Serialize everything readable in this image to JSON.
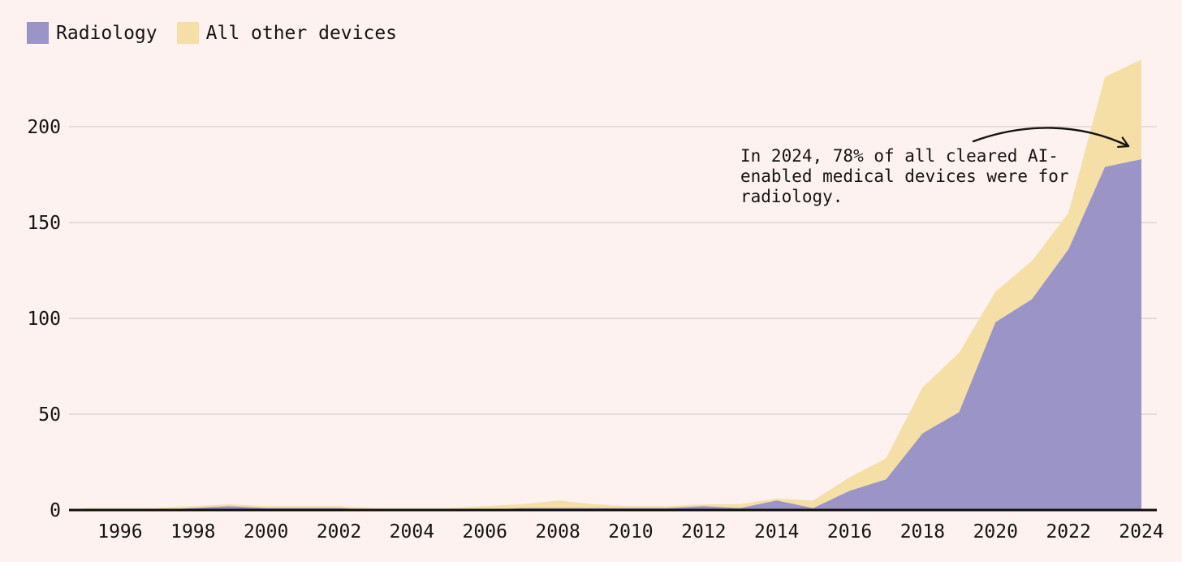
{
  "page": {
    "background_color": "#fdf2ef",
    "text_color": "#141414",
    "gridline_color": "#ddd5d2",
    "axis_color": "#0f0f0f"
  },
  "legend": {
    "items": [
      {
        "label": "Radiology",
        "color": "#9b94c7"
      },
      {
        "label": "All other devices",
        "color": "#f5dfa6"
      }
    ]
  },
  "annotation": {
    "text": "In 2024, 78% of all cleared AI-enabled medical devices were for radiology.",
    "lines": [
      "In 2024, 78% of all cleared AI-",
      "enabled medical devices were for",
      "radiology."
    ],
    "arrow_icon": "curved-arrow-pointing-right-down"
  },
  "chart_data": {
    "type": "area",
    "stacked": true,
    "x": [
      1995,
      1996,
      1997,
      1998,
      1999,
      2000,
      2001,
      2002,
      2003,
      2004,
      2005,
      2006,
      2007,
      2008,
      2009,
      2010,
      2011,
      2012,
      2013,
      2014,
      2015,
      2016,
      2017,
      2018,
      2019,
      2020,
      2021,
      2022,
      2023,
      2024
    ],
    "series": [
      {
        "name": "Radiology",
        "color": "#9b94c7",
        "values": [
          0,
          0,
          0,
          1,
          2,
          1,
          1,
          1,
          0,
          0,
          0,
          0,
          1,
          1,
          1,
          1,
          1,
          2,
          1,
          5,
          1,
          10,
          16,
          40,
          51,
          98,
          110,
          136,
          179,
          183
        ]
      },
      {
        "name": "All other devices",
        "color": "#f5dfa6",
        "values": [
          1,
          1,
          1,
          1,
          1,
          1,
          1,
          1,
          1,
          1,
          1,
          2,
          2,
          4,
          2,
          1,
          1,
          1,
          2,
          1,
          4,
          7,
          11,
          24,
          31,
          16,
          20,
          19,
          47,
          52
        ]
      }
    ],
    "title": "",
    "xlabel": "",
    "ylabel": "",
    "yticks": [
      0,
      50,
      100,
      150,
      200
    ],
    "xticks": [
      1996,
      1998,
      2000,
      2002,
      2004,
      2006,
      2008,
      2010,
      2012,
      2014,
      2016,
      2018,
      2020,
      2022,
      2024
    ],
    "ylim": [
      0,
      236
    ],
    "xlim": [
      1995,
      2024
    ],
    "grid": "horizontal",
    "legend_position": "top-left"
  }
}
